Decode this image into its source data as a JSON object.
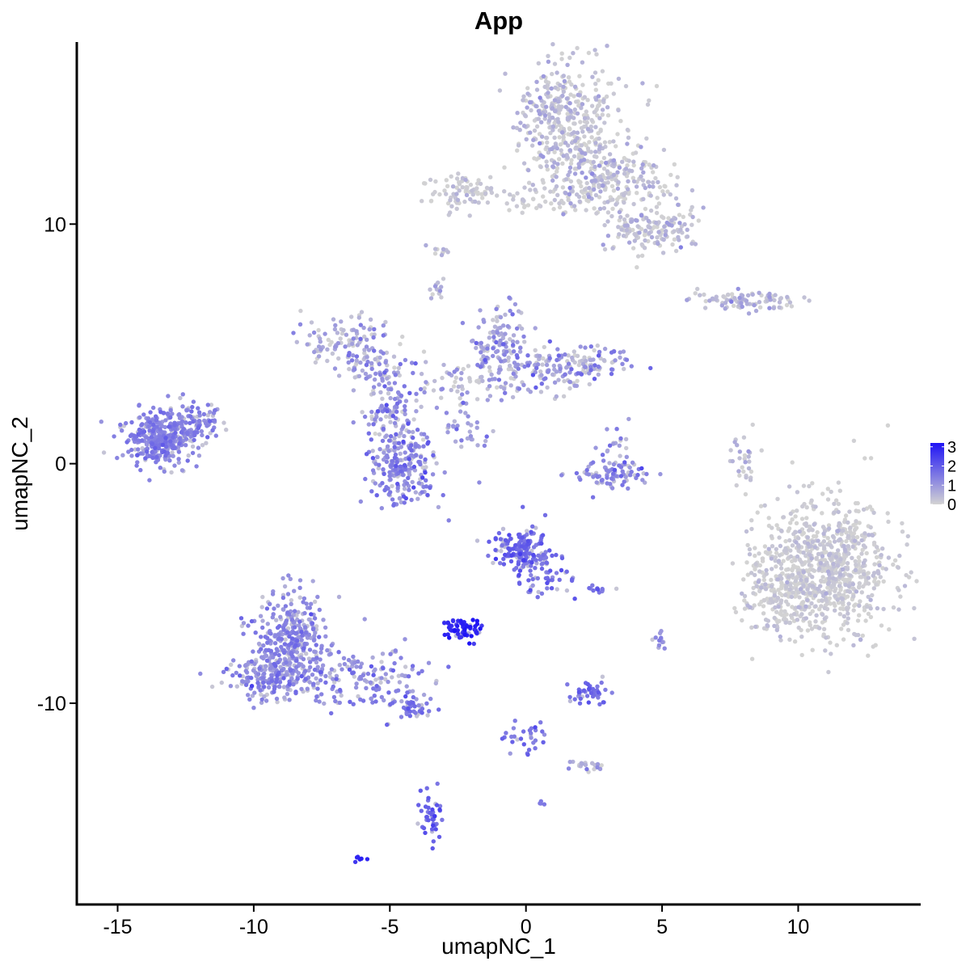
{
  "chart_data": {
    "type": "scatter",
    "title": "App",
    "xlabel": "umapNC_1",
    "ylabel": "umapNC_2",
    "xlim": [
      -16.5,
      14.5
    ],
    "ylim": [
      -18.4,
      17.6
    ],
    "x_ticks": [
      -15,
      -10,
      -5,
      0,
      5,
      10
    ],
    "x_tick_labels": [
      "-15",
      "-10",
      "-5",
      "0",
      "5",
      "10"
    ],
    "y_ticks": [
      -10,
      0,
      10
    ],
    "y_tick_labels": [
      "-10",
      "0",
      "10"
    ],
    "grid": false,
    "legend": {
      "placement": "right",
      "type": "continuous-colorbar",
      "range": [
        0,
        3.2
      ],
      "ticks": [
        0,
        1,
        2,
        3
      ],
      "tick_labels": [
        "0",
        "1",
        "2",
        "3"
      ],
      "low_color": "#d3d3d3",
      "high_color": "#1f14f5"
    },
    "note_clusters_are_summary": true,
    "clusters": [
      {
        "x": -13.4,
        "y": 1.1,
        "sx": 0.7,
        "sy": 0.55,
        "n": 380,
        "expr": 1.35,
        "expr_sd": 0.25
      },
      {
        "x": -12.0,
        "y": 1.8,
        "sx": 0.45,
        "sy": 0.35,
        "n": 60,
        "expr": 1.3,
        "expr_sd": 0.25
      },
      {
        "x": -8.6,
        "y": -7.3,
        "sx": 0.7,
        "sy": 1.0,
        "n": 330,
        "expr": 1.2,
        "expr_sd": 0.35
      },
      {
        "x": -9.2,
        "y": -8.9,
        "sx": 0.9,
        "sy": 0.5,
        "n": 200,
        "expr": 1.2,
        "expr_sd": 0.35
      },
      {
        "x": -5.8,
        "y": -9.0,
        "sx": 1.2,
        "sy": 0.6,
        "n": 140,
        "expr": 1.2,
        "expr_sd": 0.35
      },
      {
        "x": -4.2,
        "y": -10.2,
        "sx": 0.4,
        "sy": 0.25,
        "n": 40,
        "expr": 1.6,
        "expr_sd": 0.3
      },
      {
        "x": -4.5,
        "y": -0.1,
        "sx": 0.65,
        "sy": 0.75,
        "n": 230,
        "expr": 1.2,
        "expr_sd": 0.45
      },
      {
        "x": -5.0,
        "y": 2.3,
        "sx": 0.5,
        "sy": 0.8,
        "n": 90,
        "expr": 1.0,
        "expr_sd": 0.45
      },
      {
        "x": -6.6,
        "y": 5.0,
        "sx": 0.8,
        "sy": 0.6,
        "n": 110,
        "expr": 0.6,
        "expr_sd": 0.45
      },
      {
        "x": -5.4,
        "y": 4.0,
        "sx": 0.7,
        "sy": 0.4,
        "n": 60,
        "expr": 1.0,
        "expr_sd": 0.45
      },
      {
        "x": -1.0,
        "y": 5.0,
        "sx": 0.5,
        "sy": 0.8,
        "n": 120,
        "expr": 1.0,
        "expr_sd": 0.45
      },
      {
        "x": 0.2,
        "y": 3.8,
        "sx": 0.9,
        "sy": 0.5,
        "n": 80,
        "expr": 0.6,
        "expr_sd": 0.45
      },
      {
        "x": 2.0,
        "y": 4.1,
        "sx": 0.9,
        "sy": 0.4,
        "n": 120,
        "expr": 1.0,
        "expr_sd": 0.45
      },
      {
        "x": -2.6,
        "y": 3.3,
        "sx": 0.7,
        "sy": 0.5,
        "n": 50,
        "expr": 0.7,
        "expr_sd": 0.45
      },
      {
        "x": -3.2,
        "y": 7.3,
        "sx": 0.15,
        "sy": 0.25,
        "n": 14,
        "expr": 0.6,
        "expr_sd": 0.4
      },
      {
        "x": -3.0,
        "y": 8.8,
        "sx": 0.2,
        "sy": 0.15,
        "n": 10,
        "expr": 0.4,
        "expr_sd": 0.3
      },
      {
        "x": -2.1,
        "y": 1.4,
        "sx": 0.5,
        "sy": 0.5,
        "n": 30,
        "expr": 0.8,
        "expr_sd": 0.4
      },
      {
        "x": 3.2,
        "y": -0.5,
        "sx": 0.7,
        "sy": 0.3,
        "n": 80,
        "expr": 1.3,
        "expr_sd": 0.35
      },
      {
        "x": 3.3,
        "y": 0.5,
        "sx": 0.3,
        "sy": 0.5,
        "n": 25,
        "expr": 0.9,
        "expr_sd": 0.4
      },
      {
        "x": -0.3,
        "y": -3.6,
        "sx": 0.5,
        "sy": 0.5,
        "n": 150,
        "expr": 1.75,
        "expr_sd": 0.3
      },
      {
        "x": 0.6,
        "y": -4.6,
        "sx": 0.5,
        "sy": 0.5,
        "n": 60,
        "expr": 1.5,
        "expr_sd": 0.3
      },
      {
        "x": -2.3,
        "y": -6.9,
        "sx": 0.35,
        "sy": 0.2,
        "n": 70,
        "expr": 2.9,
        "expr_sd": 0.25
      },
      {
        "x": 2.3,
        "y": -9.5,
        "sx": 0.35,
        "sy": 0.25,
        "n": 45,
        "expr": 1.7,
        "expr_sd": 0.3
      },
      {
        "x": 2.6,
        "y": -5.2,
        "sx": 0.3,
        "sy": 0.1,
        "n": 12,
        "expr": 1.4,
        "expr_sd": 0.3
      },
      {
        "x": 5.0,
        "y": -7.4,
        "sx": 0.15,
        "sy": 0.2,
        "n": 12,
        "expr": 1.0,
        "expr_sd": 0.3
      },
      {
        "x": 0.0,
        "y": -11.5,
        "sx": 0.4,
        "sy": 0.4,
        "n": 30,
        "expr": 1.5,
        "expr_sd": 0.35
      },
      {
        "x": 2.2,
        "y": -12.6,
        "sx": 0.4,
        "sy": 0.15,
        "n": 20,
        "expr": 0.8,
        "expr_sd": 0.4
      },
      {
        "x": -3.5,
        "y": -14.7,
        "sx": 0.2,
        "sy": 0.5,
        "n": 45,
        "expr": 1.9,
        "expr_sd": 0.3
      },
      {
        "x": -6.1,
        "y": -16.5,
        "sx": 0.1,
        "sy": 0.07,
        "n": 6,
        "expr": 2.8,
        "expr_sd": 0.15
      },
      {
        "x": 0.6,
        "y": -14.2,
        "sx": 0.06,
        "sy": 0.06,
        "n": 4,
        "expr": 1.6,
        "expr_sd": 0.2
      },
      {
        "x": 1.5,
        "y": 14.2,
        "sx": 1.0,
        "sy": 1.3,
        "n": 420,
        "expr": 0.3,
        "expr_sd": 0.35
      },
      {
        "x": 3.3,
        "y": 11.8,
        "sx": 1.0,
        "sy": 0.7,
        "n": 220,
        "expr": 0.3,
        "expr_sd": 0.35
      },
      {
        "x": 4.5,
        "y": 9.7,
        "sx": 0.8,
        "sy": 0.5,
        "n": 150,
        "expr": 0.3,
        "expr_sd": 0.35
      },
      {
        "x": -2.3,
        "y": 11.4,
        "sx": 0.6,
        "sy": 0.4,
        "n": 80,
        "expr": 0.15,
        "expr_sd": 0.2
      },
      {
        "x": 0.8,
        "y": 11.1,
        "sx": 1.0,
        "sy": 0.4,
        "n": 60,
        "expr": 0.15,
        "expr_sd": 0.2
      },
      {
        "x": 8.3,
        "y": 6.8,
        "sx": 1.0,
        "sy": 0.2,
        "n": 90,
        "expr": 0.4,
        "expr_sd": 0.4
      },
      {
        "x": 8.0,
        "y": 0.2,
        "sx": 0.25,
        "sy": 0.7,
        "n": 30,
        "expr": 0.25,
        "expr_sd": 0.3
      },
      {
        "x": 11.0,
        "y": -4.4,
        "sx": 1.2,
        "sy": 1.4,
        "n": 850,
        "expr": 0.12,
        "expr_sd": 0.2
      },
      {
        "x": 9.2,
        "y": -5.5,
        "sx": 0.6,
        "sy": 0.8,
        "n": 120,
        "expr": 0.12,
        "expr_sd": 0.2
      }
    ]
  }
}
